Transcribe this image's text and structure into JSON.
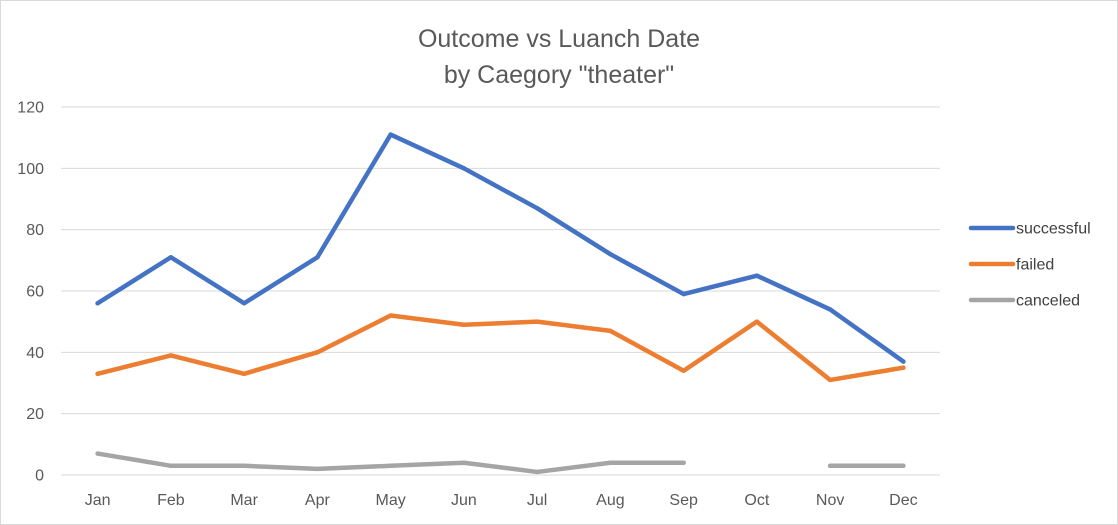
{
  "chart_data": {
    "type": "line",
    "title_lines": [
      "Outcome vs Luanch Date",
      "by Caegory \"theater\""
    ],
    "xlabel": "",
    "ylabel": "",
    "categories": [
      "Jan",
      "Feb",
      "Mar",
      "Apr",
      "May",
      "Jun",
      "Jul",
      "Aug",
      "Sep",
      "Oct",
      "Nov",
      "Dec"
    ],
    "ylim": [
      0,
      120
    ],
    "yticks": [
      0,
      20,
      40,
      60,
      80,
      100,
      120
    ],
    "grid": true,
    "legend_position": "right",
    "series": [
      {
        "name": "successful",
        "color": "#4472c4",
        "values": [
          56,
          71,
          56,
          71,
          111,
          100,
          87,
          72,
          59,
          65,
          54,
          37
        ]
      },
      {
        "name": "failed",
        "color": "#ed7d31",
        "values": [
          33,
          39,
          33,
          40,
          52,
          49,
          50,
          47,
          34,
          50,
          31,
          35
        ]
      },
      {
        "name": "canceled",
        "color": "#a5a5a5",
        "values": [
          7,
          3,
          3,
          2,
          3,
          4,
          1,
          4,
          4,
          null,
          3,
          3
        ]
      }
    ]
  }
}
